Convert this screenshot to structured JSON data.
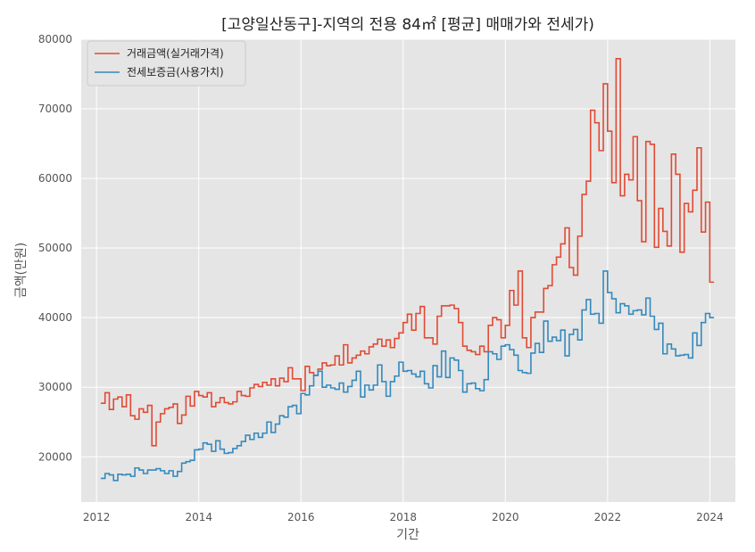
{
  "chart_data": {
    "type": "line",
    "title": "[고양일산동구]-지역의 전용 84㎡ [평균] 매매가와 전세가)",
    "xlabel": "기간",
    "ylabel": "금액(만원)",
    "xlim": [
      2011.7,
      2024.5
    ],
    "ylim": [
      13500,
      80000
    ],
    "x_ticks": [
      2012,
      2014,
      2016,
      2018,
      2020,
      2022,
      2024
    ],
    "y_ticks": [
      20000,
      30000,
      40000,
      50000,
      60000,
      70000,
      80000
    ],
    "grid": true,
    "legend_position": "top-left",
    "step": "post",
    "x_start": 2012.083,
    "x_step": 0.08333,
    "series": [
      {
        "name": "거래금액(실거래가격)",
        "color": "#E24A33",
        "values": [
          27700,
          29200,
          26800,
          28300,
          28600,
          27200,
          28900,
          25900,
          25400,
          26900,
          26400,
          27400,
          21600,
          25000,
          26200,
          26900,
          27100,
          27600,
          24800,
          26000,
          28700,
          27300,
          29400,
          28800,
          28600,
          29200,
          27200,
          27800,
          28500,
          27800,
          27600,
          27900,
          29400,
          28800,
          28700,
          29900,
          30400,
          30100,
          30700,
          30300,
          31200,
          30200,
          31300,
          30800,
          32800,
          31200,
          31200,
          29500,
          33000,
          32100,
          31700,
          32600,
          33500,
          33100,
          33200,
          34500,
          33200,
          36100,
          33500,
          34200,
          34600,
          35200,
          34800,
          35800,
          36200,
          36900,
          35900,
          36800,
          35700,
          37000,
          37800,
          39300,
          40500,
          38200,
          40600,
          41600,
          37100,
          37100,
          36200,
          40200,
          41700,
          41700,
          41800,
          41300,
          39300,
          35900,
          35300,
          35100,
          34700,
          35900,
          35100,
          38900,
          40000,
          39700,
          37100,
          38900,
          43900,
          41800,
          46700,
          37100,
          35700,
          40000,
          40800,
          40800,
          44200,
          44600,
          47600,
          48700,
          50600,
          52900,
          47200,
          46100,
          51700,
          57700,
          59600,
          69800,
          68000,
          64000,
          73600,
          66800,
          59400,
          77200,
          57500,
          60600,
          59800,
          66000,
          56800,
          50900,
          65300,
          64900,
          50100,
          55700,
          52400,
          50300,
          63500,
          60600,
          49400,
          56400,
          55200,
          58300,
          64400,
          52300,
          56600,
          45100
        ],
        "end_value": 45100
      },
      {
        "name": "전세보증금(사용가치)",
        "color": "#348ABD",
        "values": [
          16900,
          17600,
          17400,
          16600,
          17500,
          17400,
          17500,
          17200,
          18400,
          18100,
          17600,
          18100,
          18100,
          18300,
          18000,
          17600,
          18000,
          17200,
          17900,
          19100,
          19300,
          19500,
          21000,
          21100,
          22000,
          21800,
          20800,
          22300,
          21100,
          20500,
          20600,
          21200,
          21600,
          22200,
          23100,
          22500,
          23400,
          22800,
          23400,
          25000,
          23500,
          24700,
          25900,
          25700,
          27200,
          27400,
          26200,
          29100,
          28900,
          30200,
          31700,
          32300,
          30000,
          30300,
          29900,
          29700,
          30600,
          29300,
          30100,
          31000,
          32300,
          28600,
          30300,
          29600,
          30300,
          33200,
          30800,
          28700,
          30800,
          31600,
          33600,
          32300,
          32400,
          31900,
          31500,
          32300,
          30500,
          29900,
          33100,
          31500,
          35200,
          31400,
          34200,
          33900,
          32400,
          29300,
          30500,
          30600,
          29800,
          29500,
          31100,
          35100,
          34800,
          34000,
          35900,
          36100,
          35400,
          34600,
          32400,
          32100,
          32000,
          34900,
          36300,
          35000,
          39500,
          36600,
          37200,
          36700,
          38200,
          34500,
          37600,
          38300,
          36800,
          41100,
          42600,
          40500,
          40600,
          39200,
          46700,
          43600,
          42700,
          40700,
          42000,
          41700,
          40500,
          41000,
          41100,
          40400,
          42800,
          40200,
          38300,
          39200,
          34800,
          36200,
          35500,
          34500,
          34600,
          34700,
          34200,
          37800,
          36000,
          39300,
          40600,
          40000
        ],
        "end_value": 40000
      }
    ]
  }
}
